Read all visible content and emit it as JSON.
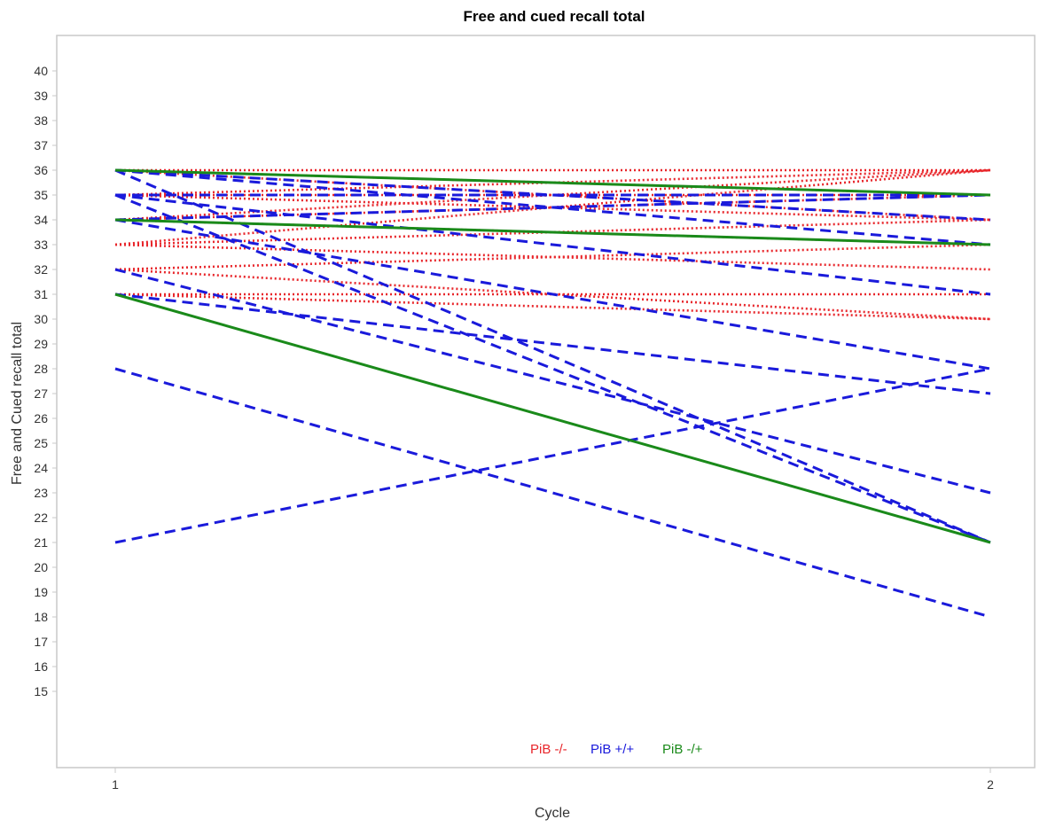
{
  "chart_data": {
    "type": "line",
    "title": "Free and cued recall total",
    "xlabel": "Cycle",
    "ylabel": "Free and Cued recall total",
    "x": [
      1,
      2
    ],
    "x_tick_labels": [
      "1",
      "2"
    ],
    "xlim": [
      1,
      2
    ],
    "ylim": [
      12,
      42
    ],
    "y_ticks": [
      15,
      16,
      17,
      18,
      19,
      20,
      21,
      22,
      23,
      24,
      25,
      26,
      27,
      28,
      29,
      30,
      31,
      32,
      33,
      34,
      35,
      36,
      37,
      38,
      39,
      40
    ],
    "grid": false,
    "legend_placement": "bottom-center",
    "groups": [
      {
        "name": "PiB -/-",
        "color": "#e8262b",
        "style": "dotted"
      },
      {
        "name": "PiB +/+",
        "color": "#1a1adb",
        "style": "dashed"
      },
      {
        "name": "PiB -/+",
        "color": "#1a8a1a",
        "style": "solid"
      }
    ],
    "series": [
      {
        "group": "PiB -/-",
        "values": [
          36,
          36
        ]
      },
      {
        "group": "PiB -/-",
        "values": [
          36,
          35
        ]
      },
      {
        "group": "PiB -/-",
        "values": [
          36,
          34
        ]
      },
      {
        "group": "PiB -/-",
        "values": [
          35,
          36
        ]
      },
      {
        "group": "PiB -/-",
        "values": [
          35,
          35
        ]
      },
      {
        "group": "PiB -/-",
        "values": [
          35,
          34
        ]
      },
      {
        "group": "PiB -/-",
        "values": [
          34,
          36
        ]
      },
      {
        "group": "PiB -/-",
        "values": [
          34,
          35
        ]
      },
      {
        "group": "PiB -/-",
        "values": [
          34,
          33
        ]
      },
      {
        "group": "PiB -/-",
        "values": [
          33,
          36
        ]
      },
      {
        "group": "PiB -/-",
        "values": [
          33,
          34
        ]
      },
      {
        "group": "PiB -/-",
        "values": [
          33,
          32
        ]
      },
      {
        "group": "PiB -/-",
        "values": [
          32,
          33
        ]
      },
      {
        "group": "PiB -/-",
        "values": [
          32,
          30
        ]
      },
      {
        "group": "PiB -/-",
        "values": [
          31,
          31
        ]
      },
      {
        "group": "PiB -/-",
        "values": [
          31,
          30
        ]
      },
      {
        "group": "PiB +/+",
        "values": [
          36,
          34
        ]
      },
      {
        "group": "PiB +/+",
        "values": [
          36,
          33
        ]
      },
      {
        "group": "PiB +/+",
        "values": [
          36,
          21
        ]
      },
      {
        "group": "PiB +/+",
        "values": [
          35,
          35
        ]
      },
      {
        "group": "PiB +/+",
        "values": [
          35,
          31
        ]
      },
      {
        "group": "PiB +/+",
        "values": [
          35,
          21
        ]
      },
      {
        "group": "PiB +/+",
        "values": [
          34,
          35
        ]
      },
      {
        "group": "PiB +/+",
        "values": [
          34,
          28
        ]
      },
      {
        "group": "PiB +/+",
        "values": [
          32,
          23
        ]
      },
      {
        "group": "PiB +/+",
        "values": [
          31,
          27
        ]
      },
      {
        "group": "PiB +/+",
        "values": [
          28,
          18
        ]
      },
      {
        "group": "PiB +/+",
        "values": [
          21,
          28
        ]
      },
      {
        "group": "PiB -/+",
        "values": [
          36,
          35
        ]
      },
      {
        "group": "PiB -/+",
        "values": [
          34,
          33
        ]
      },
      {
        "group": "PiB -/+",
        "values": [
          31,
          21
        ]
      }
    ]
  }
}
